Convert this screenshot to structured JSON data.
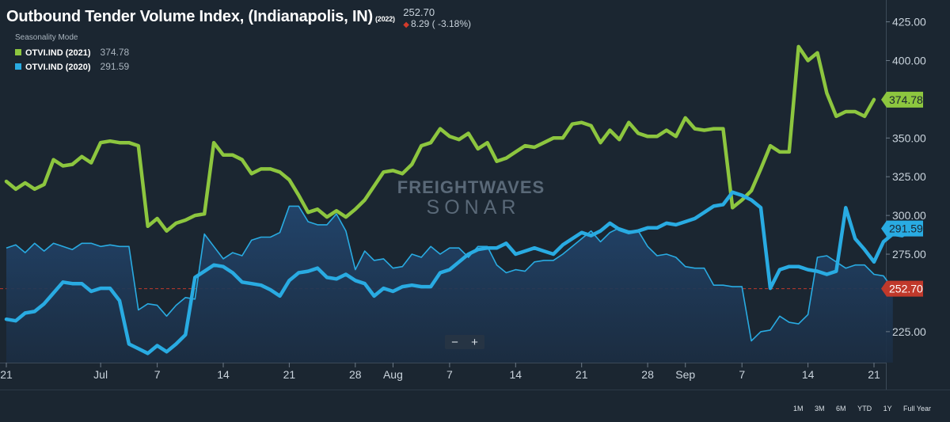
{
  "header": {
    "title": "Outbound Tender Volume Index, (Indianapolis, IN)",
    "title_year": "(2022)",
    "last_value": "252.70",
    "change": "8.29 ( -3.18%)",
    "seasonality": "Seasonality Mode"
  },
  "legend": [
    {
      "name": "OTVI.IND (2021)",
      "value": "374.78",
      "color": "#8dc63f"
    },
    {
      "name": "OTVI.IND (2020)",
      "value": "291.59",
      "color": "#29abe2"
    }
  ],
  "watermark": {
    "line1": "FREIGHTWAVES",
    "line2": "SONAR"
  },
  "zoom": {
    "minus": "−",
    "plus": "+"
  },
  "ranges": [
    "1M",
    "3M",
    "6M",
    "YTD",
    "1Y",
    "Full Year"
  ],
  "colors": {
    "green": "#8dc63f",
    "blue": "#29abe2",
    "area": "#1e3a5c",
    "current": "#c0392b",
    "bg": "#1b2631"
  },
  "chart_data": {
    "type": "line",
    "ylim": [
      205,
      435
    ],
    "y_ticks": [
      225,
      250,
      275,
      300,
      325,
      350,
      375,
      400,
      425
    ],
    "y_tick_labels": [
      "225.00",
      "",
      "275.00",
      "300.00",
      "325.00",
      "350.00",
      "",
      "400.00",
      "425.00"
    ],
    "x_ticks": [
      {
        "label": "21",
        "x": 0
      },
      {
        "label": "Jul",
        "x": 10
      },
      {
        "label": "7",
        "x": 16
      },
      {
        "label": "14",
        "x": 23
      },
      {
        "label": "21",
        "x": 30
      },
      {
        "label": "28",
        "x": 37
      },
      {
        "label": "Aug",
        "x": 41
      },
      {
        "label": "7",
        "x": 47
      },
      {
        "label": "14",
        "x": 54
      },
      {
        "label": "21",
        "x": 61
      },
      {
        "label": "28",
        "x": 68
      },
      {
        "label": "Sep",
        "x": 72
      },
      {
        "label": "7",
        "x": 78
      },
      {
        "label": "14",
        "x": 85
      },
      {
        "label": "21",
        "x": 92
      }
    ],
    "current_value": 252.7,
    "series": [
      {
        "name": "OTVI.IND (2021)",
        "last_label": "374.78",
        "values": [
          322,
          317,
          321,
          317,
          320,
          336,
          332,
          333,
          338,
          334,
          347,
          348,
          347,
          347,
          345,
          293,
          298,
          290,
          295,
          297,
          300,
          301,
          347,
          339,
          339,
          336,
          327,
          330,
          330,
          328,
          323,
          313,
          302,
          304,
          299,
          303,
          299,
          304,
          310,
          319,
          328,
          329,
          327,
          333,
          345,
          347,
          356,
          351,
          349,
          353,
          343,
          347,
          335,
          337,
          341,
          345,
          344,
          347,
          350,
          350,
          359,
          360,
          358,
          347,
          355,
          349,
          360,
          353,
          351,
          351,
          355,
          351,
          363,
          356,
          355,
          356,
          356,
          305,
          310,
          316,
          330,
          345,
          341,
          341,
          409,
          400,
          405,
          379,
          364,
          367,
          367,
          364,
          374.78
        ]
      },
      {
        "name": "OTVI.IND (2020)",
        "last_label": "291.59",
        "values": [
          233,
          232,
          237,
          238,
          243,
          250,
          257,
          256,
          256,
          251,
          253,
          253,
          245,
          217,
          214,
          211,
          216,
          212,
          217,
          223,
          260,
          264,
          268,
          267,
          263,
          257,
          256,
          255,
          252,
          248,
          258,
          263,
          264,
          266,
          260,
          259,
          262,
          258,
          256,
          248,
          253,
          251,
          254,
          255,
          254,
          254,
          263,
          265,
          270,
          275,
          278,
          279,
          279,
          282,
          275,
          277,
          279,
          277,
          275,
          281,
          285,
          289,
          287,
          290,
          295,
          291,
          289,
          290,
          292,
          292,
          295,
          294,
          296,
          298,
          302,
          306,
          307,
          315,
          313,
          310,
          305,
          253,
          265,
          267,
          267,
          265,
          264,
          262,
          264,
          305,
          285,
          278,
          270,
          283,
          288,
          287,
          291.59
        ]
      },
      {
        "name": "OTVI.IND (2022)",
        "last_label": "252.70",
        "values": [
          279,
          281,
          276,
          282,
          277,
          282,
          280,
          278,
          282,
          282,
          280,
          281,
          280,
          280,
          239,
          243,
          242,
          235,
          242,
          247,
          246,
          288,
          280,
          272,
          276,
          274,
          284,
          286,
          286,
          289,
          306,
          306,
          296,
          294,
          294,
          301,
          290,
          265,
          277,
          271,
          272,
          266,
          267,
          275,
          273,
          280,
          275,
          279,
          279,
          273,
          280,
          280,
          268,
          263,
          265,
          264,
          270,
          271,
          271,
          275,
          280,
          285,
          290,
          283,
          289,
          292,
          290,
          290,
          280,
          274,
          275,
          273,
          267,
          266,
          266,
          255,
          255,
          254,
          254,
          219,
          225,
          226,
          235,
          231,
          230,
          236,
          273,
          274,
          270,
          266,
          268,
          268,
          262,
          261,
          252.7
        ]
      }
    ]
  }
}
